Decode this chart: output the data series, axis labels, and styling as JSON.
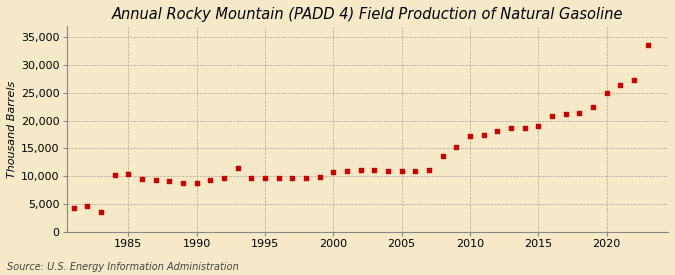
{
  "title": "Annual Rocky Mountain (PADD 4) Field Production of Natural Gasoline",
  "ylabel": "Thousand Barrels",
  "source": "Source: U.S. Energy Information Administration",
  "background_color": "#f5e9c8",
  "plot_bg_color": "#f5e9c8",
  "marker_color": "#cc0000",
  "years": [
    1981,
    1982,
    1983,
    1984,
    1985,
    1986,
    1987,
    1988,
    1989,
    1990,
    1991,
    1992,
    1993,
    1994,
    1995,
    1996,
    1997,
    1998,
    1999,
    2000,
    2001,
    2002,
    2003,
    2004,
    2005,
    2006,
    2007,
    2008,
    2009,
    2010,
    2011,
    2012,
    2013,
    2014,
    2015,
    2016,
    2017,
    2018,
    2019,
    2020,
    2021,
    2022,
    2023
  ],
  "values": [
    4200,
    4600,
    3600,
    10200,
    10400,
    9500,
    9300,
    9100,
    8800,
    8700,
    9400,
    9700,
    11500,
    9600,
    9600,
    9600,
    9700,
    9700,
    9800,
    10700,
    11000,
    11100,
    11200,
    11000,
    11000,
    10900,
    11100,
    13700,
    15300,
    17200,
    17400,
    18100,
    18600,
    18700,
    19000,
    20800,
    21200,
    21400,
    22400,
    24900,
    26300,
    27300,
    33500
  ],
  "ylim": [
    0,
    37000
  ],
  "yticks": [
    0,
    5000,
    10000,
    15000,
    20000,
    25000,
    30000,
    35000
  ],
  "xlim": [
    1980.5,
    2024.5
  ],
  "xticks": [
    1985,
    1990,
    1995,
    2000,
    2005,
    2010,
    2015,
    2020
  ],
  "title_fontsize": 10.5,
  "label_fontsize": 8,
  "tick_fontsize": 8,
  "source_fontsize": 7
}
